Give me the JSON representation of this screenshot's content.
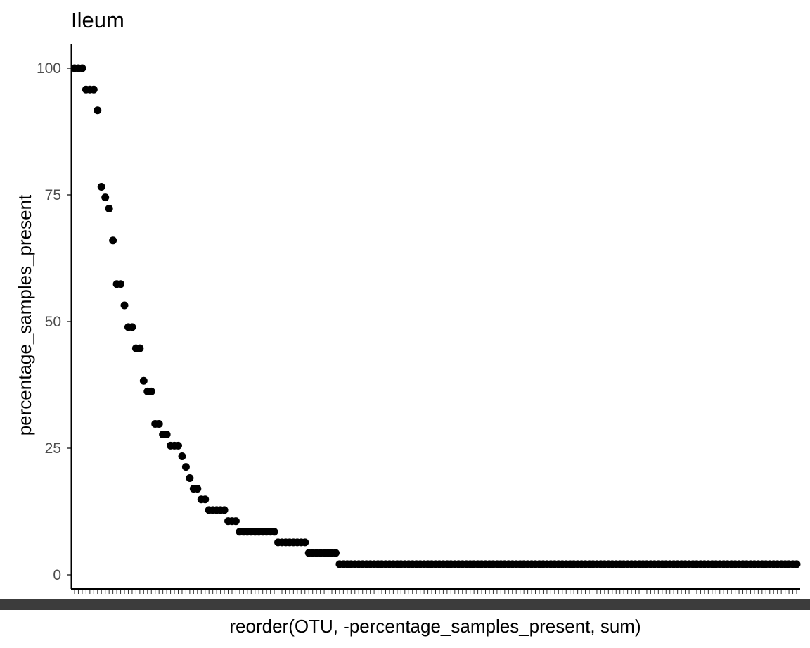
{
  "chart_data": {
    "type": "scatter",
    "title": "Ileum",
    "xlabel": "reorder(OTU, -percentage_samples_present, sum)",
    "ylabel": "percentage_samples_present",
    "y_ticks": [
      "0",
      "25",
      "50",
      "75",
      "100"
    ],
    "ylim": [
      -2,
      105
    ],
    "grid": false,
    "legend": "none",
    "marker_color": "#000000",
    "x_tick_labels_legible": false,
    "points": [
      100,
      100,
      100,
      95.8,
      95.8,
      95.8,
      91.7,
      76.6,
      74.5,
      72.3,
      66.0,
      57.4,
      57.4,
      53.2,
      48.9,
      48.9,
      44.7,
      44.7,
      38.3,
      36.2,
      36.2,
      29.8,
      29.8,
      27.7,
      27.7,
      25.5,
      25.5,
      25.5,
      23.4,
      21.3,
      19.1,
      17.0,
      17.0,
      14.9,
      14.9,
      12.8,
      12.8,
      12.8,
      12.8,
      12.8,
      10.6,
      10.6,
      10.6,
      8.5,
      8.5,
      8.5,
      8.5,
      8.5,
      8.5,
      8.5,
      8.5,
      8.5,
      8.5,
      6.4,
      6.4,
      6.4,
      6.4,
      6.4,
      6.4,
      6.4,
      6.4,
      4.3,
      4.3,
      4.3,
      4.3,
      4.3,
      4.3,
      4.3,
      4.3,
      2.1,
      2.1,
      2.1,
      2.1,
      2.1,
      2.1,
      2.1,
      2.1,
      2.1,
      2.1,
      2.1,
      2.1,
      2.1,
      2.1,
      2.1,
      2.1,
      2.1,
      2.1,
      2.1,
      2.1,
      2.1,
      2.1,
      2.1,
      2.1,
      2.1,
      2.1,
      2.1,
      2.1,
      2.1,
      2.1,
      2.1,
      2.1,
      2.1,
      2.1,
      2.1,
      2.1,
      2.1,
      2.1,
      2.1,
      2.1,
      2.1,
      2.1,
      2.1,
      2.1,
      2.1,
      2.1,
      2.1,
      2.1,
      2.1,
      2.1,
      2.1,
      2.1,
      2.1,
      2.1,
      2.1,
      2.1,
      2.1,
      2.1,
      2.1,
      2.1,
      2.1,
      2.1,
      2.1,
      2.1,
      2.1,
      2.1,
      2.1,
      2.1,
      2.1,
      2.1,
      2.1,
      2.1,
      2.1,
      2.1,
      2.1,
      2.1,
      2.1,
      2.1,
      2.1,
      2.1,
      2.1,
      2.1,
      2.1,
      2.1,
      2.1,
      2.1,
      2.1,
      2.1,
      2.1,
      2.1,
      2.1,
      2.1,
      2.1,
      2.1,
      2.1,
      2.1,
      2.1,
      2.1,
      2.1,
      2.1,
      2.1,
      2.1,
      2.1,
      2.1,
      2.1,
      2.1,
      2.1,
      2.1,
      2.1,
      2.1,
      2.1,
      2.1,
      2.1,
      2.1,
      2.1,
      2.1,
      2.1,
      2.1,
      2.1,
      2.1
    ]
  }
}
